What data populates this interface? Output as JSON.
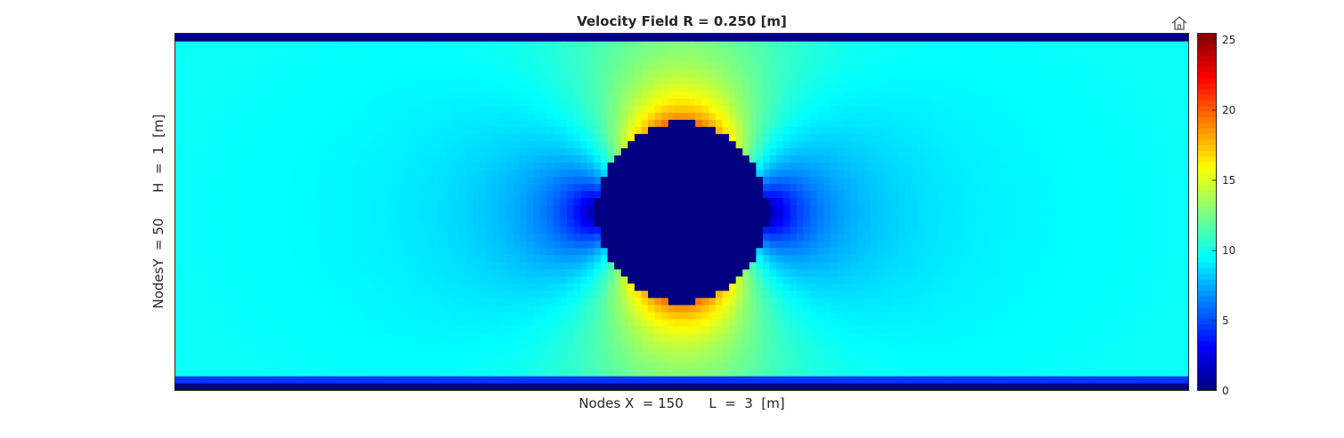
{
  "toolbar": {
    "home_icon": "home-icon"
  },
  "chart_data": {
    "type": "heatmap",
    "title": "Velocity Field R = 0.250 [m]",
    "xlabel": "Nodes X  = 150      L  =  3  [m]",
    "ylabel": "NodesY  = 50      H  =  1  [m]",
    "grid": {
      "nodes_x": 150,
      "nodes_y": 50,
      "length_m": 3,
      "height_m": 1
    },
    "obstacle": {
      "shape": "circle",
      "radius_m": 0.25,
      "center_m": [
        1.5,
        0.5
      ]
    },
    "free_stream_velocity": 10,
    "colorbar": {
      "colormap": "jet",
      "range": [
        0,
        25.5
      ],
      "ticks": [
        0,
        5,
        10,
        15,
        20,
        25
      ]
    }
  }
}
